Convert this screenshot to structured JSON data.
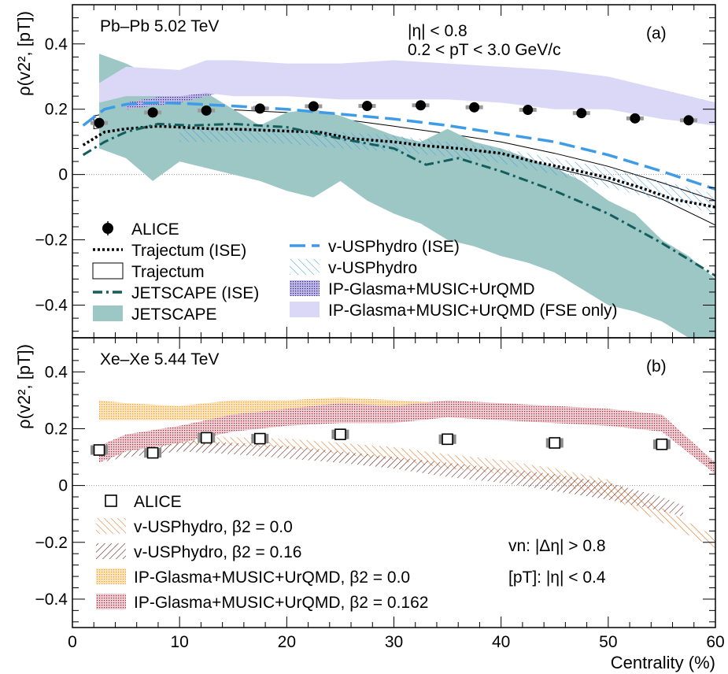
{
  "chart_data": [
    {
      "panel_id": "(a)",
      "type": "line",
      "title": "Pb–Pb 5.02 TeV",
      "annotations": [
        "|η| < 0.8",
        "0.2 < pT < 3.0 GeV/c"
      ],
      "xlabel": "Centrality (%)",
      "ylabel": "ρ(v2², [pT])",
      "xlim": [
        0,
        60
      ],
      "ylim": [
        -0.5,
        0.52
      ],
      "xticks": [
        "0",
        "10",
        "20",
        "30",
        "40",
        "50",
        "60"
      ],
      "yticks": [
        "−0.4",
        "−0.2",
        "0",
        "0.2",
        "0.4"
      ],
      "yticks_values": [
        -0.4,
        -0.2,
        0,
        0.2,
        0.4
      ],
      "series": [
        {
          "name": "ALICE",
          "kind": "points",
          "color": "#000000",
          "x": [
            2.5,
            7.5,
            12.5,
            17.5,
            22.5,
            27.5,
            32.5,
            37.5,
            42.5,
            47.5,
            52.5,
            57.5
          ],
          "y": [
            0.158,
            0.19,
            0.196,
            0.202,
            0.209,
            0.21,
            0.212,
            0.206,
            0.198,
            0.188,
            0.172,
            0.166
          ]
        },
        {
          "name": "Trajectum (ISE)",
          "kind": "line",
          "style": "dotted",
          "color": "#000000",
          "x": [
            1,
            3,
            5,
            8,
            10,
            13,
            16,
            20,
            23,
            26,
            30,
            33,
            36,
            40,
            43,
            46,
            50,
            53,
            56,
            60
          ],
          "y": [
            0.09,
            0.13,
            0.14,
            0.148,
            0.145,
            0.14,
            0.138,
            0.133,
            0.13,
            0.11,
            0.1,
            0.088,
            0.08,
            0.065,
            0.04,
            0.02,
            -0.01,
            -0.04,
            -0.075,
            -0.1
          ]
        },
        {
          "name": "Trajectum",
          "kind": "band",
          "fill": "none",
          "color": "#000000",
          "x": [
            2,
            5,
            10,
            15,
            20,
            25,
            30,
            35,
            40,
            45,
            50,
            55,
            60
          ],
          "y_high": [
            0.18,
            0.195,
            0.2,
            0.198,
            0.19,
            0.17,
            0.148,
            0.125,
            0.1,
            0.065,
            0.025,
            -0.025,
            -0.08
          ],
          "y_low": [
            0.14,
            0.155,
            0.158,
            0.148,
            0.14,
            0.125,
            0.11,
            0.085,
            0.055,
            0.02,
            -0.02,
            -0.075,
            -0.155
          ]
        },
        {
          "name": "JETSCAPE (ISE)",
          "kind": "line",
          "style": "dashdot",
          "color": "#135e5d",
          "x": [
            1,
            3,
            5,
            8,
            11,
            15,
            20,
            25,
            30,
            33,
            36,
            40,
            45,
            50,
            55,
            60
          ],
          "y": [
            0.06,
            0.1,
            0.13,
            0.155,
            0.15,
            0.155,
            0.145,
            0.11,
            0.08,
            0.03,
            0.05,
            0.01,
            -0.05,
            -0.12,
            -0.21,
            -0.31
          ]
        },
        {
          "name": "JETSCAPE",
          "kind": "band",
          "color": "#9cc7c5",
          "x": [
            2.5,
            5,
            7.5,
            10,
            12.5,
            15,
            17.5,
            20,
            22.5,
            25,
            27.5,
            30,
            32.5,
            35,
            37.5,
            40,
            42.5,
            45,
            47.5,
            50,
            52.5,
            55,
            57.5,
            60
          ],
          "y_high": [
            0.37,
            0.34,
            0.3,
            0.28,
            0.25,
            0.2,
            0.15,
            0.19,
            0.2,
            0.18,
            0.15,
            0.12,
            0.1,
            0.14,
            0.1,
            0.08,
            0.05,
            0.02,
            -0.02,
            -0.08,
            -0.12,
            -0.2,
            -0.25,
            -0.32
          ],
          "y_low": [
            0.08,
            0.05,
            -0.02,
            0.04,
            0.02,
            0.0,
            -0.02,
            -0.05,
            -0.07,
            -0.02,
            -0.08,
            -0.12,
            -0.15,
            -0.2,
            -0.22,
            -0.25,
            -0.27,
            -0.3,
            -0.35,
            -0.4,
            -0.42,
            -0.45,
            -0.5,
            -0.5
          ]
        },
        {
          "name": "v-USPhydro (ISE)",
          "kind": "line",
          "style": "dashed",
          "color": "#3f9be6",
          "x": [
            1,
            3,
            5,
            8,
            10,
            15,
            20,
            25,
            30,
            35,
            40,
            45,
            50,
            55,
            60
          ],
          "y": [
            0.15,
            0.2,
            0.215,
            0.22,
            0.218,
            0.21,
            0.2,
            0.185,
            0.17,
            0.15,
            0.125,
            0.1,
            0.06,
            0.01,
            -0.045
          ]
        },
        {
          "name": "v-USPhydro",
          "kind": "band",
          "hatch": "lightblue",
          "color": "#3f9be6",
          "x": [
            10,
            15,
            20,
            25,
            30,
            35,
            40,
            45,
            50,
            55,
            60
          ],
          "y_high": [
            0.14,
            0.145,
            0.14,
            0.13,
            0.12,
            0.1,
            0.08,
            0.05,
            0.02,
            -0.02,
            -0.06
          ],
          "y_low": [
            0.1,
            0.1,
            0.095,
            0.08,
            0.07,
            0.055,
            0.035,
            0.0,
            -0.04,
            -0.08,
            -0.12
          ]
        },
        {
          "name": "IP-Glasma+MUSIC+UrQMD",
          "kind": "band",
          "hatch": "dots",
          "color": "#2e2080",
          "x": [
            5,
            10,
            15,
            20,
            25,
            30,
            35,
            40,
            45,
            50,
            55,
            60
          ],
          "y_high": [
            0.22,
            0.25,
            0.3,
            0.3,
            0.3,
            0.3,
            0.3,
            0.3,
            0.3,
            0.28,
            0.26,
            0.22
          ],
          "y_low": [
            0.2,
            0.22,
            0.26,
            0.25,
            0.25,
            0.26,
            0.26,
            0.25,
            0.24,
            0.22,
            0.2,
            0.17
          ]
        },
        {
          "name": "IP-Glasma+MUSIC+UrQMD (FSE only)",
          "kind": "band",
          "color": "#dad8f6",
          "x": [
            2.5,
            5,
            10,
            12.5,
            15,
            20,
            25,
            30,
            35,
            40,
            45,
            50,
            55,
            60
          ],
          "y_high": [
            0.28,
            0.33,
            0.32,
            0.35,
            0.35,
            0.34,
            0.34,
            0.35,
            0.34,
            0.33,
            0.32,
            0.3,
            0.26,
            0.22
          ],
          "y_low": [
            0.22,
            0.24,
            0.24,
            0.25,
            0.24,
            0.24,
            0.23,
            0.23,
            0.23,
            0.22,
            0.2,
            0.2,
            0.17,
            0.15
          ]
        }
      ],
      "legend": {
        "left": [
          "ALICE",
          "Trajectum (ISE)",
          "Trajectum",
          "JETSCAPE (ISE)",
          "JETSCAPE"
        ],
        "right": [
          "v-USPhydro (ISE)",
          "v-USPhydro",
          "IP-Glasma+MUSIC+UrQMD",
          "IP-Glasma+MUSIC+UrQMD (FSE only)"
        ]
      }
    },
    {
      "panel_id": "(b)",
      "type": "line",
      "title": "Xe–Xe 5.44 TeV",
      "annotations": [
        "vn: |Δη| > 0.8",
        "[pT]: |η| < 0.4"
      ],
      "xlabel": "Centrality (%)",
      "ylabel": "ρ(v2², [pT])",
      "xlim": [
        0,
        60
      ],
      "ylim": [
        -0.5,
        0.52
      ],
      "xticks": [
        "0",
        "10",
        "20",
        "30",
        "40",
        "50",
        "60"
      ],
      "yticks": [
        "−0.4",
        "−0.2",
        "0",
        "0.2",
        "0.4"
      ],
      "yticks_values": [
        -0.4,
        -0.2,
        0,
        0.2,
        0.4
      ],
      "series": [
        {
          "name": "ALICE",
          "kind": "open-squares",
          "color": "#000000",
          "x": [
            2.5,
            7.5,
            12.5,
            17.5,
            25,
            35,
            45,
            55
          ],
          "y": [
            0.125,
            0.115,
            0.168,
            0.165,
            0.18,
            0.163,
            0.15,
            0.145
          ]
        },
        {
          "name": "v-USPhydro, β2 = 0.0",
          "kind": "band",
          "hatch": "orange-diag",
          "color": "#e07018",
          "x": [
            2.5,
            5,
            10,
            15,
            20,
            25,
            30,
            35,
            40,
            45,
            50,
            55,
            60
          ],
          "y_high": [
            0.13,
            0.15,
            0.17,
            0.17,
            0.165,
            0.15,
            0.135,
            0.11,
            0.09,
            0.06,
            0.02,
            -0.08,
            -0.18
          ],
          "y_low": [
            0.1,
            0.12,
            0.145,
            0.14,
            0.13,
            0.11,
            0.09,
            0.06,
            0.04,
            0.005,
            -0.04,
            -0.13,
            -0.22
          ]
        },
        {
          "name": "v-USPhydro, β2 = 0.16",
          "kind": "band",
          "hatch": "dark-diag",
          "color": "#5a1010",
          "x": [
            2.5,
            5,
            10,
            15,
            20,
            25,
            30,
            35,
            40,
            45,
            50,
            55,
            57
          ],
          "y_high": [
            0.13,
            0.15,
            0.16,
            0.15,
            0.14,
            0.12,
            0.1,
            0.08,
            0.06,
            0.04,
            0.01,
            -0.04,
            -0.07
          ],
          "y_low": [
            0.08,
            0.1,
            0.12,
            0.11,
            0.095,
            0.08,
            0.06,
            0.03,
            0.01,
            -0.02,
            -0.05,
            -0.09,
            -0.11
          ]
        },
        {
          "name": "IP-Glasma+MUSIC+UrQMD, β2 = 0.0",
          "kind": "band",
          "hatch": "orange-dots",
          "color": "#f0a020",
          "x": [
            2.5,
            5,
            10,
            15,
            20,
            25,
            30,
            35,
            40,
            45,
            50,
            55,
            60
          ],
          "y_high": [
            0.3,
            0.29,
            0.28,
            0.3,
            0.3,
            0.31,
            0.3,
            0.29,
            0.28,
            0.28,
            0.27,
            0.25,
            0.08
          ],
          "y_low": [
            0.23,
            0.23,
            0.23,
            0.23,
            0.24,
            0.25,
            0.24,
            0.24,
            0.23,
            0.22,
            0.21,
            0.2,
            0.04
          ]
        },
        {
          "name": "IP-Glasma+MUSIC+UrQMD, β2 = 0.162",
          "kind": "band",
          "hatch": "red-dots",
          "color": "#b02030",
          "x": [
            2.5,
            5,
            10,
            15,
            20,
            25,
            30,
            35,
            40,
            45,
            50,
            55,
            60
          ],
          "y_high": [
            0.14,
            0.18,
            0.21,
            0.25,
            0.27,
            0.29,
            0.28,
            0.3,
            0.29,
            0.28,
            0.27,
            0.25,
            0.08
          ],
          "y_low": [
            0.08,
            0.12,
            0.15,
            0.19,
            0.21,
            0.22,
            0.22,
            0.24,
            0.23,
            0.22,
            0.21,
            0.19,
            0.04
          ]
        }
      ],
      "legend": {
        "left": [
          "ALICE",
          "v-USPhydro, β2 = 0.0",
          "v-USPhydro, β2 = 0.16",
          "IP-Glasma+MUSIC+UrQMD, β2 = 0.0",
          "IP-Glasma+MUSIC+UrQMD, β2 = 0.162"
        ]
      }
    }
  ]
}
